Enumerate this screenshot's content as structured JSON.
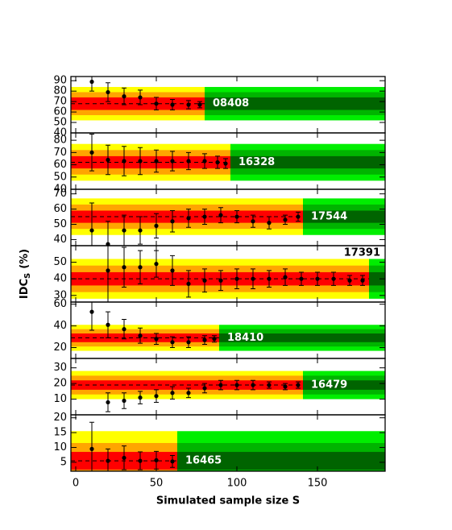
{
  "axis_labels": {
    "x": "Simulated sample size S",
    "y": "IDC",
    "y_sub": "S",
    "y_unit": "(%)"
  },
  "colors": {
    "yellow": "#ffff00",
    "orange": "#ffa500",
    "red": "#ff0000",
    "green_light": "#00ee00",
    "green_mid": "#00b400",
    "green_dark": "#006400",
    "points": "#000000"
  },
  "chart_data": [
    {
      "type": "errorbar",
      "title": "08408",
      "xlim": [
        -3,
        192
      ],
      "xticks": [
        0,
        50,
        100,
        150
      ],
      "ylim": [
        40,
        94
      ],
      "yticks": [
        40,
        50,
        60,
        70,
        80,
        90
      ],
      "mean": 68,
      "bands": [
        6,
        11,
        16
      ],
      "switch_x": 80,
      "x": [
        10,
        20,
        30,
        40,
        50,
        60,
        70,
        77
      ],
      "values": [
        89,
        79,
        75,
        74,
        68,
        67,
        67,
        67
      ],
      "errors": [
        9,
        9,
        8,
        7,
        6,
        5,
        4,
        3
      ]
    },
    {
      "type": "errorbar",
      "title": "16328",
      "xlim": [
        -3,
        192
      ],
      "xticks": [
        0,
        50,
        100,
        150
      ],
      "ylim": [
        40,
        86
      ],
      "yticks": [
        40,
        50,
        60,
        70,
        80
      ],
      "mean": 62,
      "bands": [
        5,
        10,
        15
      ],
      "switch_x": 96,
      "x": [
        10,
        20,
        30,
        40,
        50,
        60,
        70,
        80,
        88,
        93
      ],
      "values": [
        70,
        64,
        63,
        63,
        63,
        63,
        63,
        63,
        62,
        61
      ],
      "errors": [
        15,
        12,
        12,
        11,
        9,
        8,
        7,
        6,
        5,
        4
      ]
    },
    {
      "type": "errorbar",
      "title": "17544",
      "xlim": [
        -3,
        192
      ],
      "xticks": [
        0,
        50,
        100,
        150
      ],
      "ylim": [
        36,
        73
      ],
      "yticks": [
        40,
        50,
        60,
        70
      ],
      "mean": 55,
      "bands": [
        4,
        8,
        12
      ],
      "switch_x": 141,
      "x": [
        10,
        20,
        30,
        40,
        50,
        60,
        70,
        80,
        90,
        100,
        110,
        120,
        130,
        138
      ],
      "values": [
        46,
        37,
        46,
        46,
        49,
        52,
        54,
        55,
        56,
        55,
        52,
        51,
        53,
        55
      ],
      "errors": [
        18,
        15,
        10,
        9,
        8,
        7,
        6,
        5,
        5,
        4,
        4,
        4,
        3,
        3
      ]
    },
    {
      "type": "errorbar",
      "title": "17391",
      "label_color": "#000000",
      "label_position": "top-right",
      "xlim": [
        -3,
        192
      ],
      "xticks": [
        0,
        50,
        100,
        150
      ],
      "ylim": [
        26,
        60
      ],
      "yticks": [
        30,
        40,
        50
      ],
      "mean": 40,
      "bands": [
        4,
        8,
        12
      ],
      "switch_x": 182,
      "x": [
        20,
        30,
        40,
        50,
        60,
        70,
        80,
        90,
        100,
        110,
        120,
        130,
        140,
        150,
        160,
        170,
        178
      ],
      "values": [
        45,
        47,
        47,
        49,
        45,
        37,
        39,
        39,
        40,
        40,
        40,
        41,
        40,
        40,
        40,
        39,
        39
      ],
      "errors": [
        19,
        12,
        10,
        8,
        9,
        8,
        7,
        6,
        6,
        6,
        5,
        5,
        4,
        4,
        4,
        3,
        3
      ]
    },
    {
      "type": "errorbar",
      "title": "18410",
      "xlim": [
        -3,
        192
      ],
      "xticks": [
        0,
        50,
        100,
        150
      ],
      "ylim": [
        10,
        62
      ],
      "yticks": [
        20,
        40,
        60
      ],
      "mean": 29,
      "bands": [
        4,
        8,
        12
      ],
      "switch_x": 89,
      "x": [
        10,
        20,
        30,
        40,
        50,
        60,
        70,
        80,
        86
      ],
      "values": [
        53,
        41,
        37,
        31,
        28,
        25,
        25,
        27,
        28
      ],
      "errors": [
        17,
        12,
        9,
        7,
        5,
        5,
        5,
        4,
        3
      ]
    },
    {
      "type": "errorbar",
      "title": "16479",
      "xlim": [
        -3,
        192
      ],
      "xticks": [
        0,
        50,
        100,
        150
      ],
      "ylim": [
        0,
        36
      ],
      "yticks": [
        10,
        20,
        30
      ],
      "mean": 19,
      "bands": [
        3,
        6,
        9
      ],
      "switch_x": 141,
      "x": [
        20,
        30,
        40,
        50,
        60,
        70,
        80,
        90,
        100,
        110,
        120,
        130,
        138
      ],
      "values": [
        8,
        9,
        11,
        12,
        14,
        14,
        17,
        19,
        19,
        19,
        19,
        18,
        19
      ],
      "errors": [
        6,
        5,
        4,
        4,
        4,
        3,
        3,
        3,
        3,
        3,
        2,
        2,
        2
      ]
    },
    {
      "type": "errorbar",
      "title": "16465",
      "xlim": [
        -3,
        192
      ],
      "xticks": [
        0,
        50,
        100,
        150
      ],
      "ylim": [
        2,
        21
      ],
      "yticks": [
        5,
        10,
        15,
        20
      ],
      "mean": 5.5,
      "bands": [
        3,
        6,
        10
      ],
      "switch_x": 63,
      "x": [
        10,
        20,
        30,
        40,
        50,
        60
      ],
      "values": [
        9.5,
        5.5,
        6.5,
        5.5,
        5.7,
        5.3
      ],
      "errors": [
        9,
        4,
        4,
        3,
        3,
        2
      ]
    }
  ]
}
